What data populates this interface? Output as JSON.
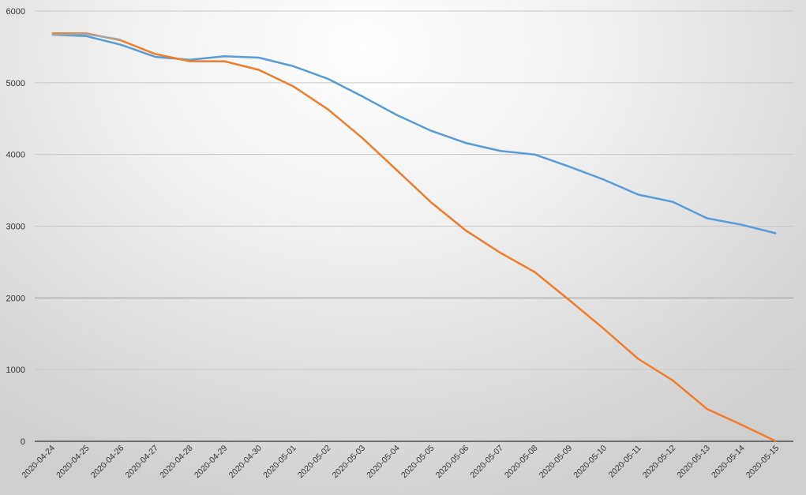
{
  "chart_data": {
    "type": "line",
    "categories": [
      "2020-04-24",
      "2020-04-25",
      "2020-04-26",
      "2020-04-27",
      "2020-04-28",
      "2020-04-29",
      "2020-04-30",
      "2020-05-01",
      "2020-05-02",
      "2020-05-03",
      "2020-05-04",
      "2020-05-05",
      "2020-05-06",
      "2020-05-07",
      "2020-05-08",
      "2020-05-09",
      "2020-05-10",
      "2020-05-11",
      "2020-05-12",
      "2020-05-13",
      "2020-05-14",
      "2020-05-15"
    ],
    "series": [
      {
        "color": "#5b9bd5",
        "values": [
          5670,
          5650,
          5530,
          5360,
          5320,
          5370,
          5350,
          5230,
          5055,
          4810,
          4550,
          4330,
          4160,
          4050,
          4000,
          3830,
          3650,
          3440,
          3340,
          3110,
          3020,
          2900
        ]
      },
      {
        "color": "#ed7d31",
        "values": [
          5690,
          5690,
          5590,
          5400,
          5300,
          5300,
          5180,
          4950,
          4630,
          4230,
          3780,
          3330,
          2940,
          2630,
          2360,
          1970,
          1570,
          1150,
          850,
          450,
          230,
          0
        ]
      },
      {
        "color": "#a5a5a5",
        "values": [
          5670,
          5680,
          5600,
          null,
          null,
          null,
          null,
          null,
          null,
          null,
          null,
          null,
          null,
          null,
          null,
          null,
          null,
          null,
          null,
          null,
          null,
          null
        ]
      }
    ],
    "ylim": [
      0,
      6000
    ],
    "yticks": [
      0,
      1000,
      2000,
      3000,
      4000,
      5000,
      6000
    ],
    "grid": true
  }
}
